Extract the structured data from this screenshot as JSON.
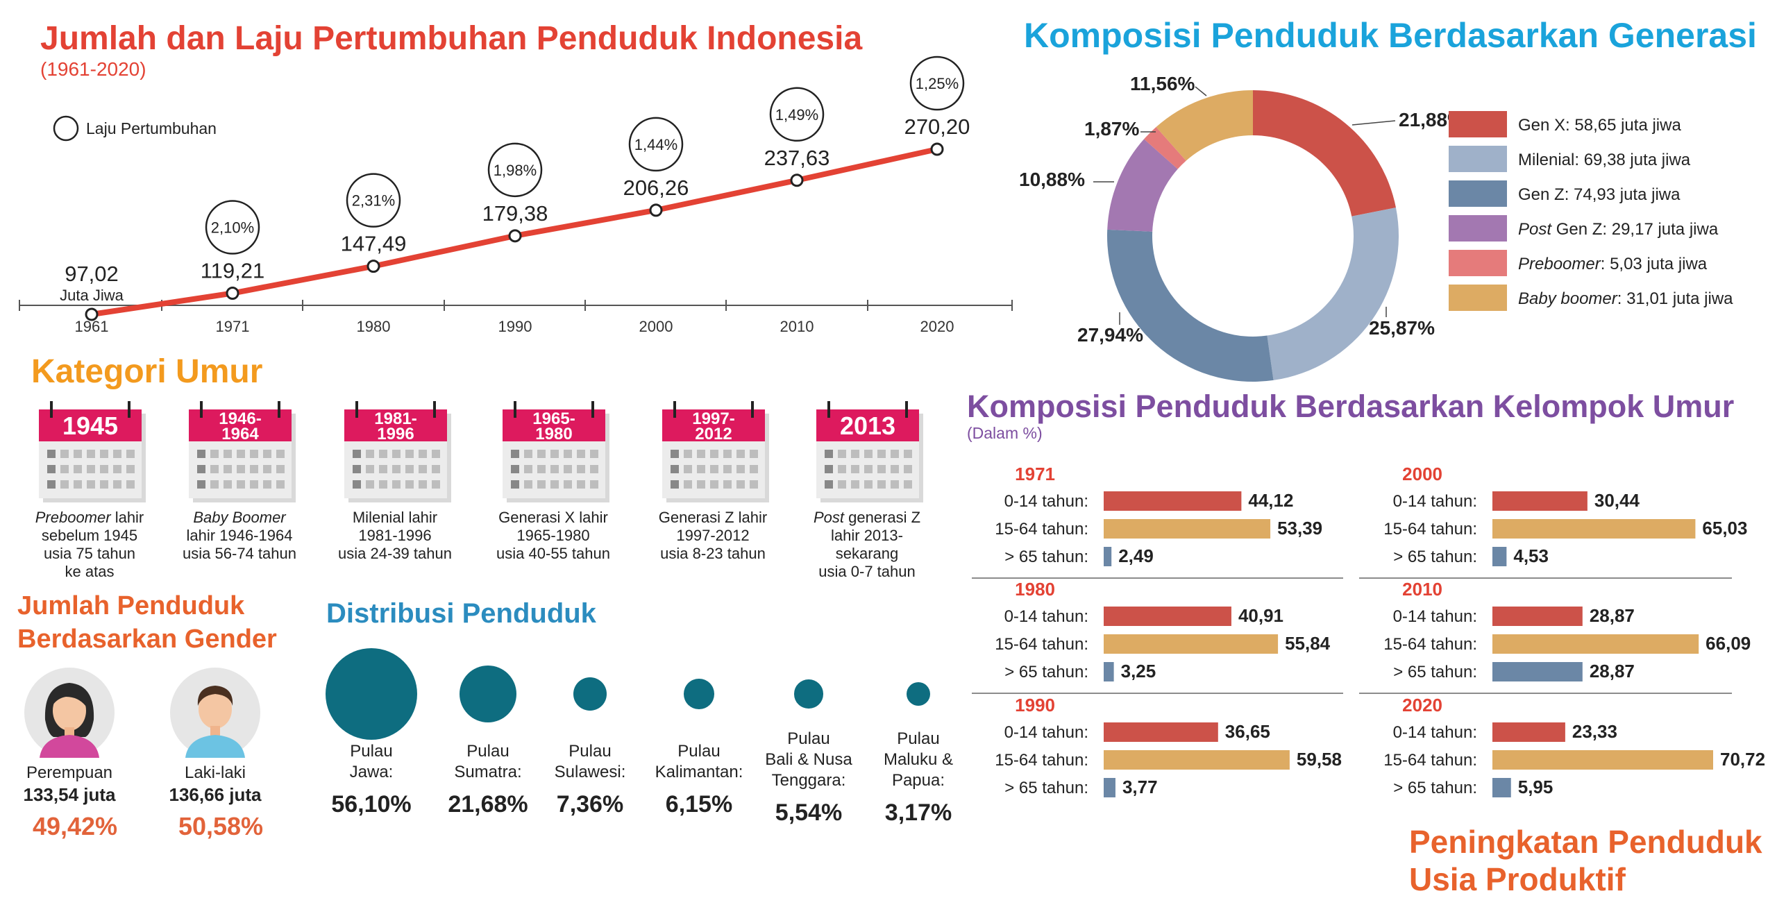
{
  "growth": {
    "title": "Jumlah dan Laju Pertumbuhan Penduduk Indonesia",
    "subtitle": "(1961-2020)",
    "legend": "Laju Pertumbuhan",
    "unit_label": "Juta Jiwa",
    "color": "#e34234"
  },
  "generation": {
    "title": "Komposisi Penduduk Berdasarkan Generasi",
    "color": "#1aa3db"
  },
  "kategori": {
    "title": "Kategori Umur",
    "color": "#f39a1e",
    "items": [
      {
        "year": "1945",
        "lines": [
          "Preboomer lahir",
          "sebelum 1945",
          "usia 75 tahun",
          "ke atas"
        ]
      },
      {
        "year": "1946-\n1964",
        "lines": [
          "Baby Boomer",
          "lahir 1946-1964",
          "usia 56-74 tahun"
        ]
      },
      {
        "year": "1981-\n1996",
        "lines": [
          "Milenial lahir",
          "1981-1996",
          "usia 24-39 tahun"
        ]
      },
      {
        "year": "1965-\n1980",
        "lines": [
          "Generasi X lahir",
          "1965-1980",
          "usia 40-55 tahun"
        ]
      },
      {
        "year": "1997-\n2012",
        "lines": [
          "Generasi Z lahir",
          "1997-2012",
          "usia 8-23 tahun"
        ]
      },
      {
        "year": "2013",
        "lines": [
          "Post generasi Z",
          "lahir 2013-",
          "sekarang",
          "usia 0-7 tahun"
        ]
      }
    ]
  },
  "gender": {
    "title_line1": "Jumlah Penduduk",
    "title_line2": "Berdasarkan Gender",
    "color": "#e8622c",
    "female": {
      "label": "Perempuan",
      "count": "133,54 juta",
      "pct": "49,42%"
    },
    "male": {
      "label": "Laki-laki",
      "count": "136,66 juta",
      "pct": "50,58%"
    }
  },
  "distribusi": {
    "title": "Distribusi Penduduk",
    "color": "#2b8cbf",
    "circle_color": "#0e6d80",
    "islands": [
      {
        "name": "Pulau\nJawa:",
        "pct": "56,10%",
        "value": 56.1
      },
      {
        "name": "Pulau\nSumatra:",
        "pct": "21,68%",
        "value": 21.68
      },
      {
        "name": "Pulau\nSulawesi:",
        "pct": "7,36%",
        "value": 7.36
      },
      {
        "name": "Pulau\nKalimantan:",
        "pct": "6,15%",
        "value": 6.15
      },
      {
        "name": "Pulau\nBali & Nusa\nTenggara:",
        "pct": "5,54%",
        "value": 5.54
      },
      {
        "name": "Pulau\nMaluku &\nPapua:",
        "pct": "3,17%",
        "value": 3.17
      }
    ]
  },
  "kelompok": {
    "title": "Komposisi Penduduk Berdasarkan Kelompok Umur",
    "subtitle": "(Dalam %)",
    "color": "#7d4ea0"
  },
  "footer": {
    "title_line1": "Peningkatan Penduduk",
    "title_line2": "Usia Produktif",
    "color": "#e8622c"
  },
  "chart_data": [
    {
      "type": "line",
      "title": "Jumlah dan Laju Pertumbuhan Penduduk Indonesia",
      "subtitle": "(1961-2020)",
      "x": [
        "1961",
        "1971",
        "1980",
        "1990",
        "2000",
        "2010",
        "2020"
      ],
      "values": [
        97.02,
        119.21,
        147.49,
        179.38,
        206.26,
        237.63,
        270.2
      ],
      "value_labels": [
        "97,02",
        "119,21",
        "147,49",
        "179,38",
        "206,26",
        "237,63",
        "270,20"
      ],
      "growth_rates": [
        null,
        "2,10%",
        "2,31%",
        "1,98%",
        "1,44%",
        "1,49%",
        "1,25%"
      ],
      "unit": "Juta Jiwa",
      "legend": "Laju Pertumbuhan",
      "ylim": [
        90,
        280
      ]
    },
    {
      "type": "pie",
      "title": "Komposisi Penduduk Berdasarkan Generasi",
      "slices": [
        {
          "name": "Gen X",
          "legend": "Gen X: 58,65 juta jiwa",
          "value": 58.65,
          "pct": 21.88,
          "pct_label": "21,88%",
          "color": "#cc5249"
        },
        {
          "name": "Milenial",
          "legend": "Milenial: 69,38 juta jiwa",
          "value": 69.38,
          "pct": 25.87,
          "pct_label": "25,87%",
          "color": "#9fb1c9"
        },
        {
          "name": "Gen Z",
          "legend": "Gen Z: 74,93 juta jiwa",
          "value": 74.93,
          "pct": 27.94,
          "pct_label": "27,94%",
          "color": "#6b87a6"
        },
        {
          "name": "Post Gen Z",
          "legend": "Post Gen Z: 29,17 juta jiwa",
          "value": 29.17,
          "pct": 10.88,
          "pct_label": "10,88%",
          "color": "#a378b1"
        },
        {
          "name": "Preboomer",
          "legend": "Preboomer: 5,03 juta jiwa",
          "value": 5.03,
          "pct": 1.87,
          "pct_label": "1,87%",
          "color": "#e57b7b"
        },
        {
          "name": "Baby boomer",
          "legend": "Baby boomer: 31,01 juta jiwa",
          "value": 31.01,
          "pct": 11.56,
          "pct_label": "11,56%",
          "color": "#ddab63"
        }
      ]
    },
    {
      "type": "bar",
      "title": "Komposisi Penduduk Berdasarkan Kelompok Umur",
      "subtitle": "(Dalam %)",
      "categories": [
        "0-14 tahun:",
        "15-64 tahun:",
        "> 65 tahun:"
      ],
      "colors": [
        "#cc5249",
        "#ddab63",
        "#6b87a6"
      ],
      "groups": [
        {
          "year": "1971",
          "values": [
            44.12,
            53.39,
            2.49
          ],
          "labels": [
            "44,12",
            "53,39",
            "2,49"
          ]
        },
        {
          "year": "1980",
          "values": [
            40.91,
            55.84,
            3.25
          ],
          "labels": [
            "40,91",
            "55,84",
            "3,25"
          ]
        },
        {
          "year": "1990",
          "values": [
            36.65,
            59.58,
            3.77
          ],
          "labels": [
            "36,65",
            "59,58",
            "3,77"
          ]
        },
        {
          "year": "2000",
          "values": [
            30.44,
            65.03,
            4.53
          ],
          "labels": [
            "30,44",
            "65,03",
            "4,53"
          ]
        },
        {
          "year": "2010",
          "values": [
            28.87,
            66.09,
            28.87
          ],
          "labels": [
            "28,87",
            "66,09",
            "28,87"
          ]
        },
        {
          "year": "2020",
          "values": [
            23.33,
            70.72,
            5.95
          ],
          "labels": [
            "23,33",
            "70,72",
            "5,95"
          ]
        }
      ],
      "xlim": [
        0,
        75
      ]
    }
  ]
}
